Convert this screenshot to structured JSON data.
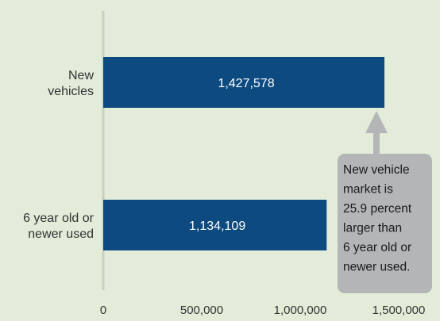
{
  "chart_data": {
    "type": "bar",
    "orientation": "horizontal",
    "categories": [
      [
        "New",
        "vehicles"
      ],
      [
        "6 year old or",
        "newer used"
      ]
    ],
    "values": [
      1427578,
      1134109
    ],
    "value_labels": [
      "1,427,578",
      "1,134,109"
    ],
    "xlim": [
      0,
      1500000
    ],
    "x_ticks": [
      0,
      500000,
      1000000,
      1500000
    ],
    "x_tick_labels": [
      "0",
      "500,000",
      "1,000,000",
      "1,500,000"
    ],
    "grid": false,
    "title": "",
    "xlabel": "",
    "ylabel": "",
    "annotation": {
      "text_lines": [
        "New vehicle",
        "market is",
        "25.9 percent",
        "larger than",
        "6 year old or",
        "newer used."
      ],
      "points_to": "New vehicles"
    }
  },
  "colors": {
    "background": "#e2ecd9",
    "bar": "#0d4a80",
    "axis": "#c9cfc4",
    "callout": "#b3b5b7"
  }
}
